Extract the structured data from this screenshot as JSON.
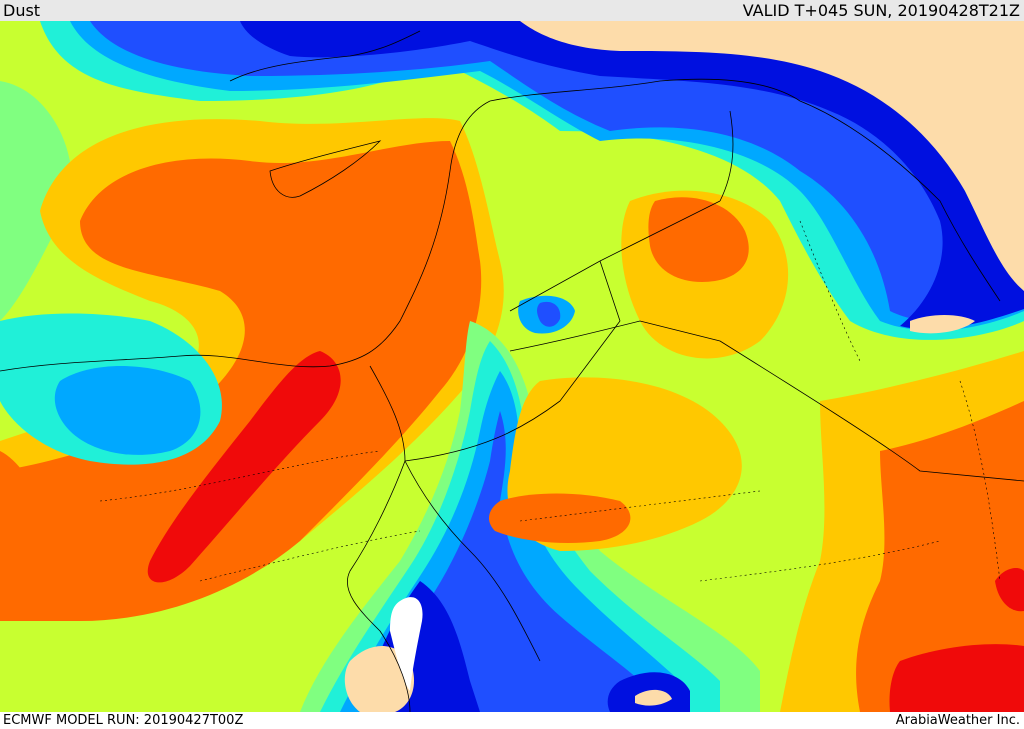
{
  "header": {
    "title": "Dust",
    "valid": "VALID T+045 SUN, 20190428T21Z"
  },
  "footer": {
    "model_run": "ECMWF MODEL RUN: 20190427T00Z",
    "brand": "ArabiaWeather Inc."
  },
  "map": {
    "field": "Dust",
    "palette": {
      "none": "#ffffff",
      "land_blank": "#fddcaa",
      "level1": "#0010e0",
      "level2": "#1f4fff",
      "level3": "#00a8ff",
      "level4": "#20f0d8",
      "level5": "#80ff80",
      "level6": "#c8ff30",
      "level7": "#ffc800",
      "level8": "#ff6a00",
      "level9": "#f00a0a"
    }
  }
}
